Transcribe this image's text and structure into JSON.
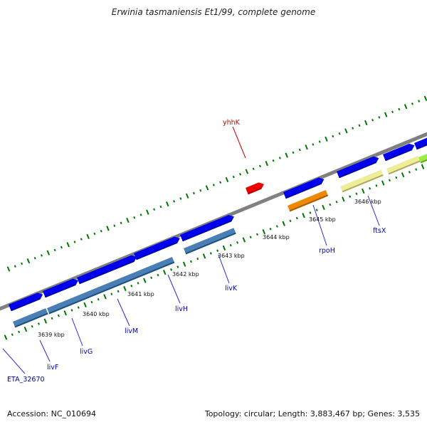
{
  "title": "Erwinia tasmaniensis Et1/99, complete genome",
  "footer": {
    "accession": "Accession: NC_010694",
    "summary": "Topology: circular; Length: 3,883,467 bp; Genes: 3,535"
  },
  "ruler": {
    "labels": [
      "3639 kbp",
      "3640 kbp",
      "3641 kbp",
      "3642 kbp",
      "3643 kbp",
      "3644 kbp",
      "3645 kbp",
      "3646 kbp"
    ]
  },
  "genes": [
    {
      "name": "ETA_32670",
      "color": "#0000aa"
    },
    {
      "name": "livF",
      "color": "#0000aa"
    },
    {
      "name": "livG",
      "color": "#0000aa"
    },
    {
      "name": "livM",
      "color": "#0000aa"
    },
    {
      "name": "livH",
      "color": "#0000aa"
    },
    {
      "name": "livK",
      "color": "#0000aa"
    },
    {
      "name": "yhhK",
      "color": "#cc0000"
    },
    {
      "name": "rpoH",
      "color": "#0000aa"
    },
    {
      "name": "ftsX",
      "color": "#0000aa"
    }
  ],
  "colors": {
    "cds_arrow": "#0000ee",
    "gene_steelblue": "#4a7fb5",
    "rpoh_orange": "#ee8800",
    "ftsx_yellow": "#eeee99",
    "yhhk_red": "#ee0000",
    "backbone": "#888888",
    "tick_green": "#007700"
  }
}
